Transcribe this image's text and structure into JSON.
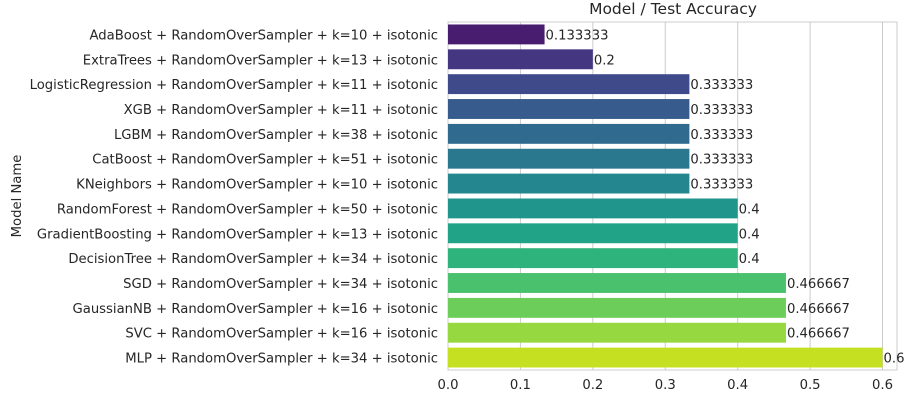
{
  "chart_data": {
    "type": "bar",
    "orientation": "horizontal",
    "title": "Model / Test Accuracy",
    "xlabel": "",
    "ylabel": "Model Name",
    "xlim": [
      0,
      0.62
    ],
    "xticks": [
      "0.0",
      "0.1",
      "0.2",
      "0.3",
      "0.4",
      "0.5",
      "0.6"
    ],
    "grid": true,
    "categories": [
      "AdaBoost + RandomOverSampler + k=10 + isotonic",
      "ExtraTrees + RandomOverSampler + k=13 + isotonic",
      "LogisticRegression + RandomOverSampler + k=11 + isotonic",
      "XGB + RandomOverSampler + k=11 + isotonic",
      "LGBM + RandomOverSampler + k=38 + isotonic",
      "CatBoost + RandomOverSampler + k=51 + isotonic",
      "KNeighbors + RandomOverSampler + k=10 + isotonic",
      "RandomForest + RandomOverSampler + k=50 + isotonic",
      "GradientBoosting + RandomOverSampler + k=13 + isotonic",
      "DecisionTree + RandomOverSampler + k=34 + isotonic",
      "SGD + RandomOverSampler + k=34 + isotonic",
      "GaussianNB + RandomOverSampler + k=16 + isotonic",
      "SVC + RandomOverSampler + k=16 + isotonic",
      "MLP + RandomOverSampler + k=34 + isotonic"
    ],
    "values": [
      0.133333,
      0.2,
      0.333333,
      0.333333,
      0.333333,
      0.333333,
      0.333333,
      0.4,
      0.4,
      0.4,
      0.466667,
      0.466667,
      0.466667,
      0.6
    ],
    "value_labels": [
      "0.133333",
      "0.2",
      "0.333333",
      "0.333333",
      "0.333333",
      "0.333333",
      "0.333333",
      "0.4",
      "0.4",
      "0.4",
      "0.466667",
      "0.466667",
      "0.466667",
      "0.6"
    ],
    "colors": [
      "#481d6f",
      "#453681",
      "#3e4a89",
      "#375b8d",
      "#306a8e",
      "#2a788e",
      "#24868e",
      "#1f958b",
      "#20a386",
      "#2eb37c",
      "#49c16d",
      "#6ccd5a",
      "#96d83f",
      "#c5e021"
    ],
    "grid_color": "#cccccc",
    "text_color": "#262626"
  }
}
